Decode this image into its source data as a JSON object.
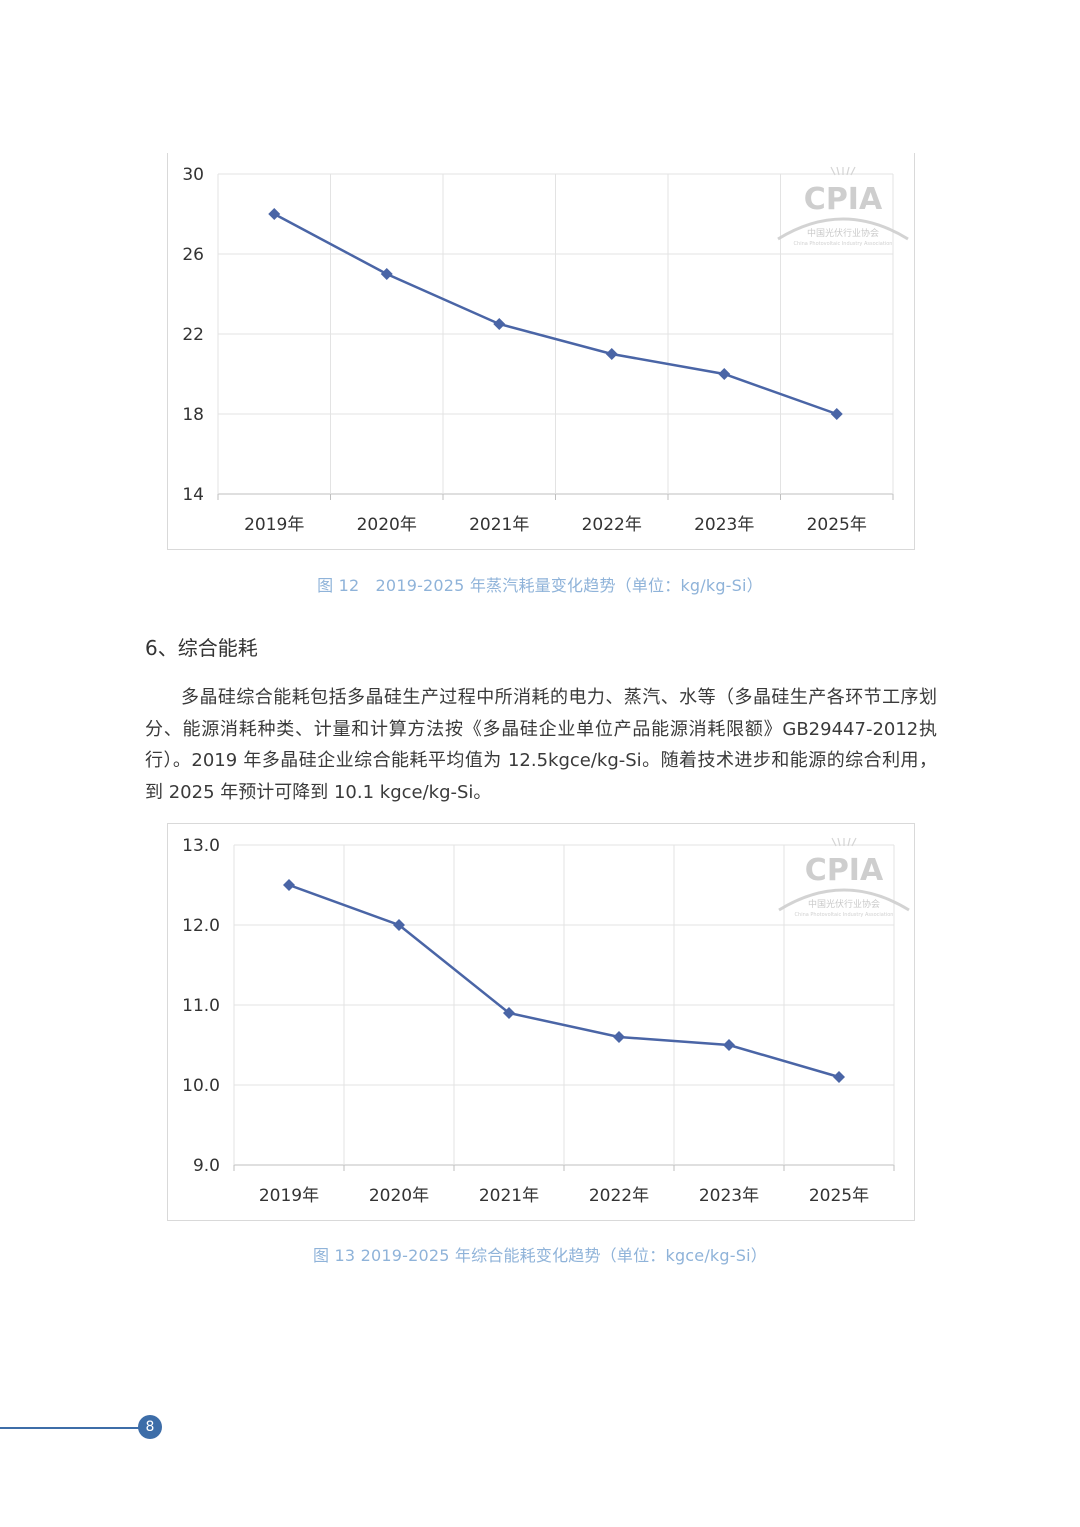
{
  "document": {
    "page_number": "8",
    "section_heading": "6、综合能耗",
    "paragraph": "多晶硅综合能耗包括多晶硅生产过程中所消耗的电力、蒸汽、水等（多晶硅生产各环节工序划分、能源消耗种类、计量和计算方法按《多晶硅企业单位产品能源消耗限额》GB29447-2012执行）。2019 年多晶硅企业综合能耗平均值为 12.5kgce/kg-Si。随着技术进步和能源的综合利用，到 2025 年预计可降到 10.1 kgce/kg-Si。",
    "accent_color": "#3d6da8",
    "caption_color": "#8fb3d9"
  },
  "watermark": {
    "text": "CPIA",
    "subtext": "中国光伏行业协会",
    "subtext_en": "China Photovoltaic Industry Association"
  },
  "chart_data": [
    {
      "type": "line",
      "caption": "图 12　2019-2025 年蒸汽耗量变化趋势（单位：kg/kg-Si）",
      "categories": [
        "2019年",
        "2020年",
        "2021年",
        "2022年",
        "2023年",
        "2025年"
      ],
      "series": [
        {
          "values": [
            28,
            25,
            22.5,
            21,
            20,
            18
          ],
          "color": "#4a65a6",
          "marker": "diamond"
        }
      ],
      "ylim": [
        14,
        30
      ],
      "yticks": [
        14,
        18,
        22,
        26,
        30
      ],
      "ytick_labels": [
        "14",
        "18",
        "22",
        "26",
        "30"
      ],
      "grid": true
    },
    {
      "type": "line",
      "caption": "图 13 2019-2025 年综合能耗变化趋势（单位：kgce/kg-Si）",
      "categories": [
        "2019年",
        "2020年",
        "2021年",
        "2022年",
        "2023年",
        "2025年"
      ],
      "series": [
        {
          "values": [
            12.5,
            12.0,
            10.9,
            10.6,
            10.5,
            10.1
          ],
          "color": "#4a65a6",
          "marker": "diamond"
        }
      ],
      "ylim": [
        9.0,
        13.0
      ],
      "yticks": [
        9.0,
        10.0,
        11.0,
        12.0,
        13.0
      ],
      "ytick_labels": [
        "9.0",
        "10.0",
        "11.0",
        "12.0",
        "13.0"
      ],
      "grid": true
    }
  ]
}
